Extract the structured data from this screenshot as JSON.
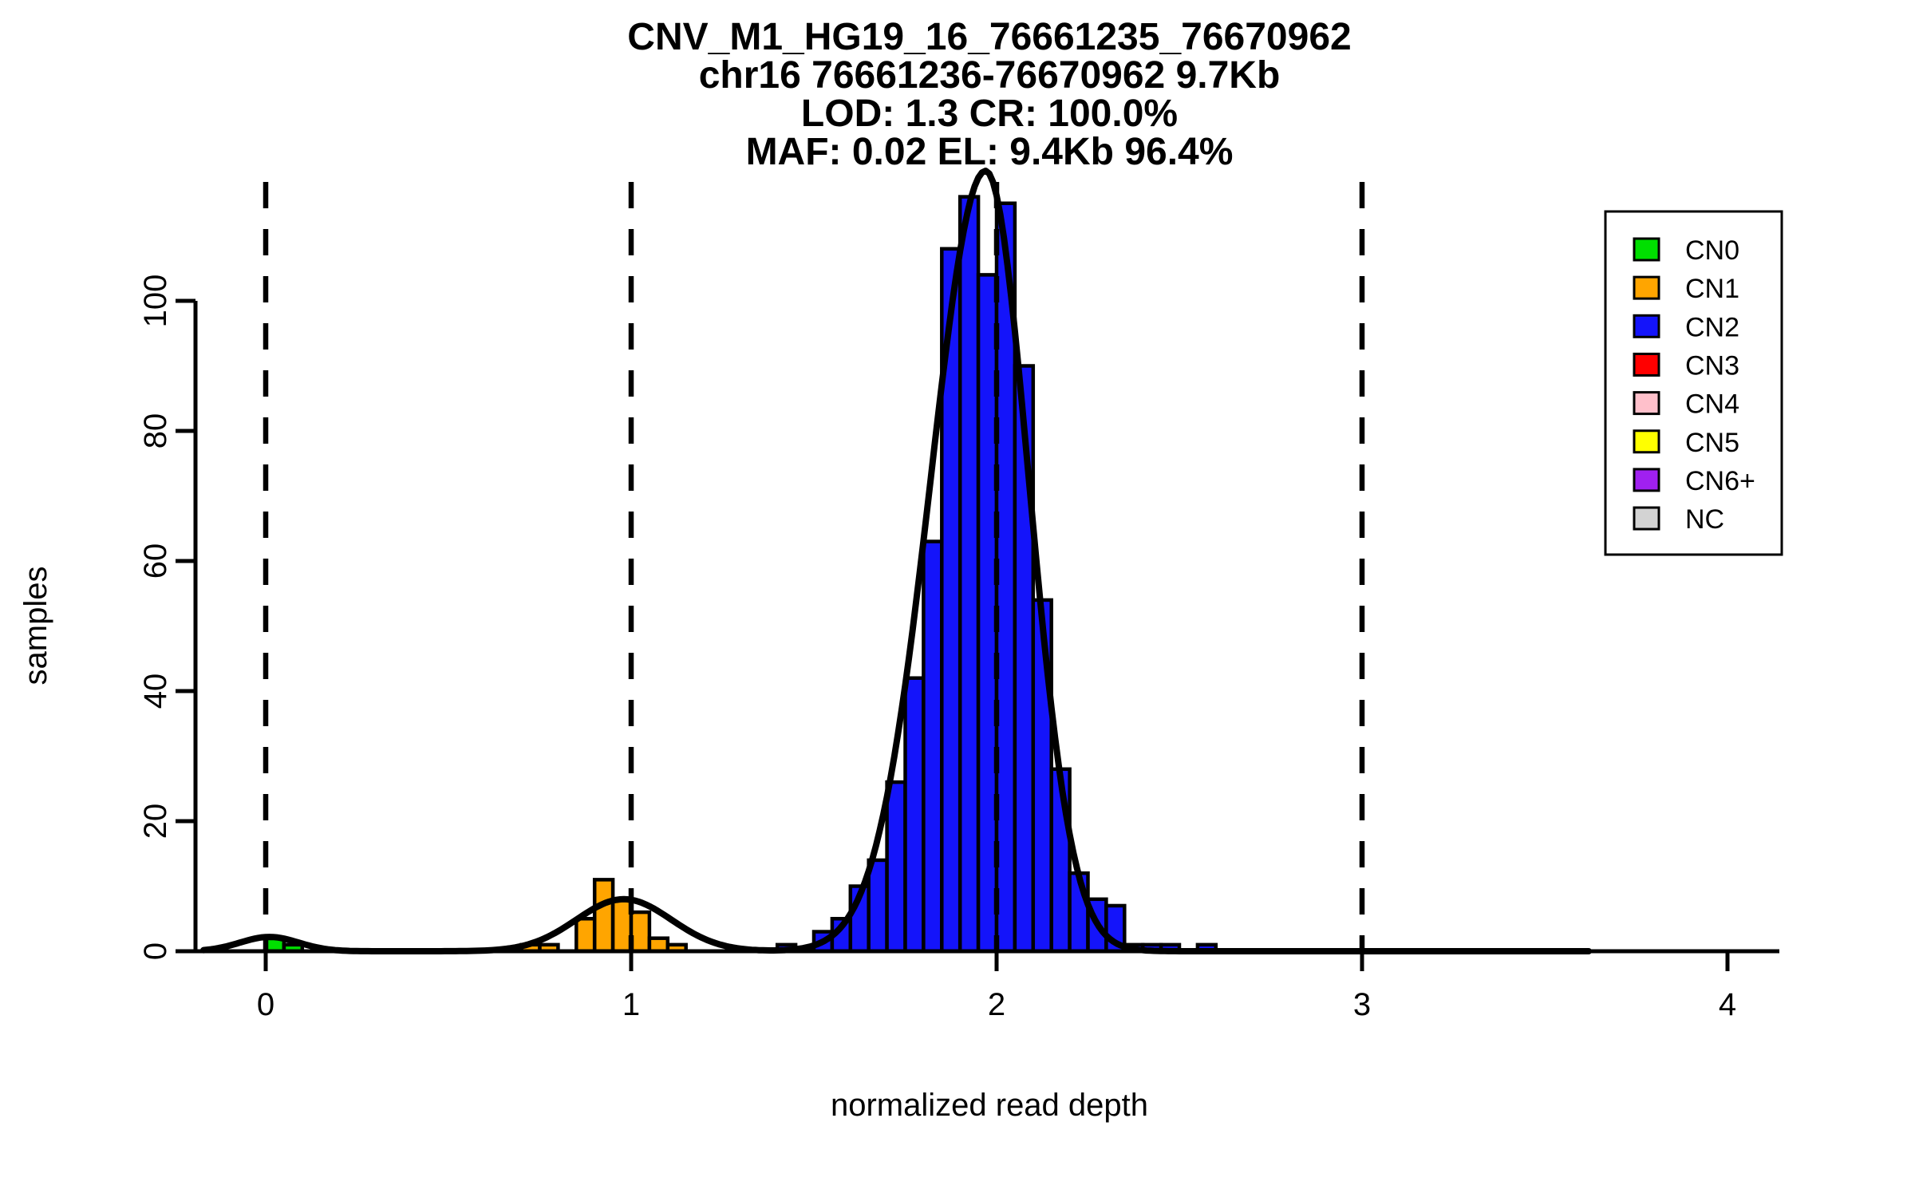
{
  "title": {
    "line1": "CNV_M1_HG19_16_76661235_76670962",
    "line2": "chr16 76661236-76670962 9.7Kb",
    "line3": "LOD: 1.3 CR: 100.0%",
    "line4": "MAF: 0.02 EL: 9.4Kb 96.4%"
  },
  "axes": {
    "xlabel": "normalized read depth",
    "ylabel": "samples",
    "x_ticks": [
      "0",
      "1",
      "2",
      "3",
      "4"
    ],
    "y_ticks": [
      "0",
      "20",
      "40",
      "60",
      "80",
      "100"
    ]
  },
  "legend": {
    "items": [
      {
        "label": "CN0",
        "color": "#00DF00"
      },
      {
        "label": "CN1",
        "color": "#FFA500"
      },
      {
        "label": "CN2",
        "color": "#1414FA"
      },
      {
        "label": "CN3",
        "color": "#FF0000"
      },
      {
        "label": "CN4",
        "color": "#FFC0CB"
      },
      {
        "label": "CN5",
        "color": "#FFFF00"
      },
      {
        "label": "CN6+",
        "color": "#A020F0"
      },
      {
        "label": "NC",
        "color": "#D3D3D3"
      }
    ]
  },
  "chart_data": {
    "type": "bar",
    "subtype": "histogram-with-density-fit",
    "title": "CNV_M1_HG19_16_76661235_76670962",
    "xlabel": "normalized read depth",
    "ylabel": "samples",
    "xlim": [
      -0.2,
      4.2
    ],
    "ylim": [
      0,
      118
    ],
    "grid": false,
    "legend_position": "top-right",
    "bin_width": 0.05,
    "dashed_vlines_x": [
      0,
      1,
      2,
      3
    ],
    "series": [
      {
        "name": "CN0",
        "color": "#00DF00",
        "bins": [
          [
            0.0,
            2
          ],
          [
            0.05,
            1
          ]
        ]
      },
      {
        "name": "CN1",
        "color": "#FFA500",
        "bins": [
          [
            0.7,
            1
          ],
          [
            0.75,
            1
          ],
          [
            0.85,
            5
          ],
          [
            0.9,
            11
          ],
          [
            0.95,
            8
          ],
          [
            1.0,
            6
          ],
          [
            1.05,
            2
          ],
          [
            1.1,
            1
          ]
        ]
      },
      {
        "name": "CN2",
        "color": "#1414FA",
        "bins": [
          [
            1.4,
            1
          ],
          [
            1.5,
            3
          ],
          [
            1.55,
            5
          ],
          [
            1.6,
            10
          ],
          [
            1.65,
            14
          ],
          [
            1.7,
            26
          ],
          [
            1.75,
            42
          ],
          [
            1.8,
            63
          ],
          [
            1.85,
            108
          ],
          [
            1.9,
            116
          ],
          [
            1.95,
            104
          ],
          [
            2.0,
            115
          ],
          [
            2.05,
            90
          ],
          [
            2.1,
            54
          ],
          [
            2.15,
            28
          ],
          [
            2.2,
            12
          ],
          [
            2.25,
            8
          ],
          [
            2.3,
            7
          ],
          [
            2.35,
            1
          ],
          [
            2.4,
            1
          ],
          [
            2.45,
            1
          ],
          [
            2.55,
            1
          ]
        ]
      }
    ],
    "density_curves": [
      {
        "name": "CN0-fit",
        "mu": 0.01,
        "sigma_left": 0.08,
        "sigma_right": 0.08,
        "amplitude": 2.2
      },
      {
        "name": "CN1-fit",
        "mu": 0.98,
        "sigma_left": 0.13,
        "sigma_right": 0.13,
        "amplitude": 8
      },
      {
        "name": "CN2-fit",
        "mu": 1.97,
        "sigma_left": 0.15,
        "sigma_right": 0.118,
        "amplitude": 120
      }
    ],
    "curve_range_x": [
      -0.17,
      3.62
    ]
  }
}
